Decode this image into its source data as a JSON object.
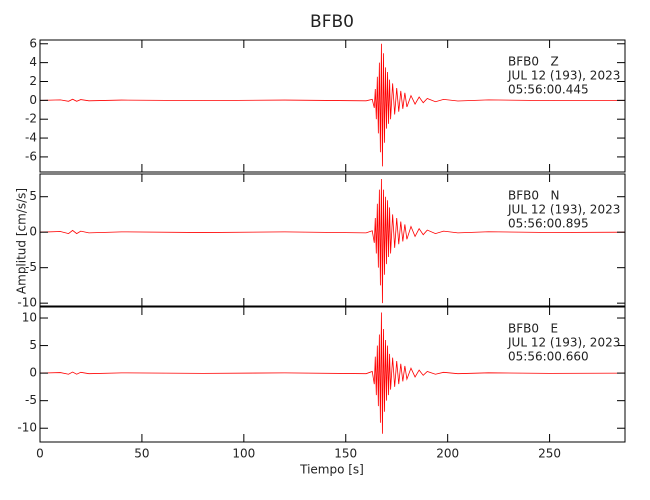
{
  "title": "BFB0",
  "ylabel": "Amplitud [cm/s/s]",
  "xlabel": "Tiempo [s]",
  "chart_data": [
    {
      "type": "line",
      "color": "#ff0000",
      "annotations": [
        "BFB0   Z",
        "JUL 12 (193), 2023",
        "05:56:00.445"
      ],
      "xlim": [
        0,
        287
      ],
      "xticks": [
        0,
        50,
        100,
        150,
        200,
        250
      ],
      "ylim": [
        -7.6,
        6.4
      ],
      "yticks": [
        -6,
        -4,
        -2,
        0,
        2,
        4,
        6
      ],
      "x": [
        0,
        10,
        14,
        16,
        18,
        20,
        24,
        40,
        80,
        120,
        160,
        163,
        164,
        164.5,
        165,
        165.5,
        166,
        166.5,
        167,
        167.5,
        168,
        168.5,
        169,
        169.5,
        170,
        170.5,
        171,
        171.5,
        172,
        173,
        174,
        175,
        176,
        177,
        178,
        179,
        180,
        182,
        184,
        186,
        188,
        190,
        194,
        198,
        205,
        220,
        250,
        287
      ],
      "values": [
        0,
        0.05,
        -0.1,
        0.12,
        -0.1,
        0.08,
        -0.05,
        0.03,
        -0.03,
        0.03,
        -0.05,
        0.1,
        -0.8,
        1.2,
        -2,
        2.5,
        -3.5,
        4,
        -5.5,
        6,
        -7,
        5,
        -4.5,
        3.5,
        -3,
        3,
        -2.5,
        2.2,
        -2,
        1.8,
        -1.5,
        1.3,
        -1.2,
        1,
        -0.9,
        0.8,
        -0.7,
        0.5,
        -0.4,
        0.35,
        -0.25,
        0.2,
        -0.15,
        0.1,
        -0.07,
        0.05,
        -0.03,
        0
      ]
    },
    {
      "type": "line",
      "color": "#ff0000",
      "annotations": [
        "BFB0   N",
        "JUL 12 (193), 2023",
        "05:56:00.895"
      ],
      "xlim": [
        0,
        287
      ],
      "xticks": [
        0,
        50,
        100,
        150,
        200,
        250
      ],
      "ylim": [
        -10.4,
        8.2
      ],
      "yticks": [
        -10,
        -5,
        0,
        5
      ],
      "x": [
        0,
        10,
        14,
        16,
        18,
        20,
        24,
        40,
        80,
        120,
        160,
        163,
        164,
        164.5,
        165,
        165.5,
        166,
        166.5,
        167,
        167.5,
        168,
        168.5,
        169,
        169.5,
        170,
        170.5,
        171,
        171.5,
        172,
        173,
        174,
        175,
        176,
        177,
        178,
        179,
        180,
        182,
        184,
        186,
        188,
        190,
        194,
        198,
        205,
        220,
        250,
        287
      ],
      "values": [
        0,
        0.1,
        -0.2,
        0.25,
        -0.2,
        0.15,
        -0.1,
        0.05,
        -0.05,
        0.05,
        -0.1,
        0.2,
        -1.5,
        2,
        -3,
        4,
        -5,
        6,
        -7.5,
        7.5,
        -10,
        6,
        -6,
        5,
        -4.5,
        4.5,
        -3.5,
        3.5,
        -3,
        2.5,
        -2.2,
        2,
        -1.7,
        1.5,
        -1.3,
        1.1,
        -1,
        0.8,
        -0.6,
        0.5,
        -0.35,
        0.3,
        -0.2,
        0.15,
        -0.1,
        0.06,
        -0.04,
        0
      ]
    },
    {
      "type": "line",
      "color": "#ff0000",
      "annotations": [
        "BFB0   E",
        "JUL 12 (193), 2023",
        "05:56:00.660"
      ],
      "xlim": [
        0,
        287
      ],
      "xticks": [
        0,
        50,
        100,
        150,
        200,
        250
      ],
      "ylim": [
        -12.5,
        12
      ],
      "yticks": [
        -10,
        -5,
        0,
        5,
        10
      ],
      "x": [
        0,
        10,
        14,
        16,
        18,
        20,
        24,
        40,
        80,
        120,
        160,
        163,
        164,
        164.5,
        165,
        165.5,
        166,
        166.5,
        167,
        167.5,
        168,
        168.5,
        169,
        169.5,
        170,
        170.5,
        171,
        171.5,
        172,
        173,
        174,
        175,
        176,
        177,
        178,
        179,
        180,
        182,
        184,
        186,
        188,
        190,
        194,
        198,
        205,
        220,
        250,
        287
      ],
      "values": [
        0,
        0.1,
        -0.2,
        0.2,
        -0.2,
        0.15,
        -0.1,
        0.05,
        -0.05,
        0.05,
        -0.1,
        0.3,
        -2,
        3,
        -4,
        5,
        -6,
        7,
        -9,
        11,
        -11,
        8,
        -7,
        6,
        -5,
        5,
        -4,
        3.5,
        -3,
        2.8,
        -2.5,
        2.2,
        -2,
        1.7,
        -1.5,
        1.3,
        -1.1,
        0.9,
        -0.7,
        0.55,
        -0.4,
        0.3,
        -0.2,
        0.15,
        -0.1,
        0.06,
        -0.04,
        0
      ]
    }
  ]
}
